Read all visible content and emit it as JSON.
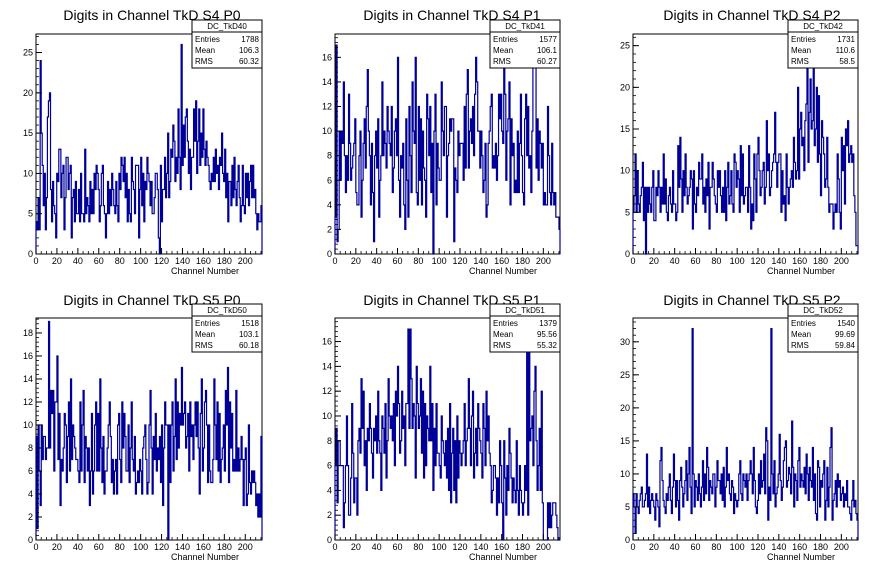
{
  "panels_meta": {
    "xlabel": "Channel Number",
    "line_color": "#000099",
    "frame_color": "#000000"
  },
  "chart_data": [
    {
      "type": "bar",
      "title": "Digits in Channel TkD S4 P0",
      "xlabel": "Channel Number",
      "xlim": [
        0,
        216
      ],
      "ylim": [
        0,
        27.3
      ],
      "xticks": [
        0,
        20,
        40,
        60,
        80,
        100,
        120,
        140,
        160,
        180,
        200
      ],
      "yticks": [
        0,
        5,
        10,
        15,
        20,
        25
      ],
      "stats": {
        "name": "DC_TkD40",
        "entries": "1788",
        "mean": "106.3",
        "rms": "60.32"
      },
      "values": [
        4,
        3,
        7,
        3,
        24,
        15,
        11,
        6,
        10,
        3,
        7,
        17,
        19,
        20,
        8,
        4,
        9,
        6,
        5,
        2,
        10,
        9,
        13,
        13,
        7,
        10,
        11,
        3,
        7,
        12,
        12,
        8,
        10,
        11,
        2,
        7,
        8,
        4,
        9,
        5,
        5,
        8,
        4,
        10,
        5,
        5,
        4,
        13,
        5,
        7,
        6,
        4,
        9,
        5,
        8,
        5,
        10,
        8,
        11,
        10,
        8,
        4,
        6,
        10,
        11,
        6,
        5,
        2,
        5,
        9,
        5,
        8,
        6,
        10,
        8,
        6,
        5,
        9,
        6,
        4,
        10,
        8,
        12,
        11,
        9,
        12,
        7,
        10,
        4,
        8,
        5,
        4,
        12,
        9,
        8,
        5,
        11,
        11,
        11,
        2,
        8,
        12,
        6,
        10,
        4,
        9,
        8,
        12,
        10,
        9,
        6,
        9,
        5,
        5,
        7,
        10,
        10,
        8,
        2,
        0,
        11,
        4,
        8,
        8,
        12,
        7,
        10,
        15,
        7,
        9,
        13,
        12,
        16,
        14,
        9,
        12,
        10,
        18,
        12,
        8,
        26,
        11,
        16,
        12,
        17,
        18,
        14,
        10,
        13,
        8,
        12,
        12,
        18,
        14,
        19,
        10,
        14,
        18,
        11,
        15,
        12,
        18,
        13,
        11,
        14,
        12,
        11,
        9,
        8,
        10,
        9,
        12,
        9,
        13,
        10,
        11,
        8,
        12,
        11,
        15,
        10,
        9,
        13,
        7,
        10,
        4,
        9,
        9,
        6,
        11,
        7,
        12,
        8,
        6,
        9,
        11,
        7,
        4,
        6,
        11,
        6,
        5,
        10,
        7,
        10,
        6,
        9,
        11,
        7,
        11,
        7,
        8,
        5,
        3,
        5,
        4,
        4,
        6
      ]
    },
    {
      "type": "bar",
      "title": "Digits in Channel TkD S4 P1",
      "xlabel": "Channel Number",
      "xlim": [
        0,
        216
      ],
      "ylim": [
        0,
        17.9
      ],
      "xticks": [
        0,
        20,
        40,
        60,
        80,
        100,
        120,
        140,
        160,
        180,
        200
      ],
      "yticks": [
        0,
        2,
        4,
        6,
        8,
        10,
        12,
        14,
        16
      ],
      "stats": {
        "name": "DC_TkD41",
        "entries": "1577",
        "mean": "106.1",
        "rms": "60.27"
      },
      "values": [
        3,
        17,
        1,
        2,
        10,
        6,
        10,
        9,
        14,
        8,
        5,
        8,
        6,
        13,
        9,
        6,
        7,
        8,
        9,
        11,
        5,
        4,
        4,
        8,
        10,
        3,
        6,
        9,
        11,
        7,
        12,
        15,
        10,
        8,
        4,
        9,
        5,
        1,
        8,
        10,
        7,
        11,
        3,
        6,
        8,
        14,
        8,
        10,
        9,
        7,
        12,
        10,
        9,
        8,
        12,
        5,
        7,
        10,
        11,
        8,
        16,
        6,
        3,
        8,
        7,
        9,
        4,
        2,
        11,
        6,
        3,
        12,
        8,
        5,
        14,
        10,
        9,
        16,
        5,
        4,
        12,
        6,
        11,
        4,
        10,
        7,
        6,
        3,
        13,
        11,
        8,
        12,
        5,
        9,
        0,
        10,
        13,
        4,
        9,
        7,
        6,
        6,
        14,
        10,
        8,
        12,
        12,
        3,
        8,
        9,
        11,
        10,
        11,
        11,
        1,
        7,
        6,
        5,
        10,
        8,
        9,
        9,
        9,
        6,
        12,
        7,
        13,
        15,
        7,
        10,
        11,
        9,
        12,
        8,
        13,
        16,
        14,
        10,
        10,
        7,
        10,
        8,
        5,
        6,
        9,
        3,
        4,
        9,
        10,
        12,
        13,
        7,
        8,
        7,
        9,
        6,
        8,
        13,
        11,
        13,
        10,
        9,
        16,
        13,
        6,
        10,
        11,
        14,
        4,
        11,
        8,
        9,
        5,
        6,
        5,
        10,
        5,
        9,
        13,
        8,
        5,
        4,
        11,
        13,
        8,
        12,
        7,
        8,
        5,
        10,
        16,
        17,
        16,
        7,
        11,
        6,
        10,
        9,
        7,
        9,
        4,
        5,
        4,
        4,
        12,
        8,
        5,
        4,
        9,
        5,
        4,
        5,
        3,
        3,
        3,
        2
      ]
    },
    {
      "type": "bar",
      "title": "Digits in Channel TkD S4 P2",
      "xlabel": "Channel Number",
      "xlim": [
        0,
        216
      ],
      "ylim": [
        0,
        26.4
      ],
      "xticks": [
        0,
        20,
        40,
        60,
        80,
        100,
        120,
        140,
        160,
        180,
        200
      ],
      "yticks": [
        0,
        5,
        10,
        15,
        20,
        25
      ],
      "stats": {
        "name": "DC_TkD42",
        "entries": "1731",
        "mean": "110.6",
        "rms": "58.5"
      },
      "values": [
        5,
        7,
        12,
        5,
        10,
        6,
        5,
        7,
        8,
        11,
        4,
        8,
        0,
        8,
        5,
        8,
        6,
        5,
        8,
        10,
        4,
        4,
        8,
        7,
        10,
        8,
        5,
        8,
        6,
        12,
        6,
        9,
        5,
        4,
        7,
        8,
        6,
        5,
        10,
        6,
        6,
        4,
        5,
        13,
        8,
        14,
        9,
        5,
        10,
        7,
        12,
        8,
        6,
        7,
        8,
        10,
        9,
        3,
        10,
        6,
        5,
        8,
        7,
        11,
        9,
        9,
        12,
        6,
        8,
        5,
        9,
        7,
        11,
        3,
        8,
        8,
        11,
        9,
        7,
        6,
        5,
        10,
        8,
        10,
        7,
        5,
        8,
        5,
        10,
        4,
        8,
        11,
        6,
        7,
        10,
        6,
        5,
        12,
        11,
        8,
        10,
        9,
        5,
        13,
        7,
        12,
        6,
        7,
        8,
        8,
        5,
        13,
        8,
        3,
        6,
        4,
        12,
        9,
        5,
        12,
        14,
        10,
        7,
        8,
        10,
        11,
        6,
        8,
        16,
        10,
        12,
        7,
        8,
        10,
        11,
        12,
        17,
        11,
        8,
        11,
        12,
        12,
        5,
        10,
        6,
        7,
        4,
        12,
        8,
        6,
        8,
        9,
        10,
        8,
        14,
        11,
        9,
        10,
        20,
        9,
        15,
        17,
        13,
        14,
        10,
        16,
        18,
        25,
        11,
        17,
        21,
        15,
        16,
        23,
        13,
        15,
        20,
        11,
        19,
        12,
        7,
        16,
        14,
        12,
        8,
        9,
        14,
        8,
        5,
        6,
        6,
        6,
        3,
        5,
        6,
        5,
        12,
        9,
        5,
        3,
        14,
        10,
        13,
        6,
        15,
        13,
        16,
        11,
        12,
        13,
        11,
        12,
        7,
        5,
        1,
        1
      ]
    },
    {
      "type": "bar",
      "title": "Digits in Channel TkD S5 P0",
      "xlabel": "Channel Number",
      "xlim": [
        0,
        216
      ],
      "ylim": [
        0,
        19.3
      ],
      "xticks": [
        0,
        20,
        40,
        60,
        80,
        100,
        120,
        140,
        160,
        180,
        200
      ],
      "yticks": [
        0,
        2,
        4,
        6,
        8,
        10,
        12,
        14,
        16,
        18
      ],
      "stats": {
        "name": "DC_TkD50",
        "entries": "1518",
        "mean": "103.1",
        "rms": "60.18"
      },
      "values": [
        9,
        1,
        10,
        6,
        3,
        10,
        7,
        9,
        9,
        7,
        8,
        8,
        19,
        8,
        13,
        11,
        13,
        6,
        12,
        12,
        16,
        7,
        11,
        3,
        7,
        6,
        8,
        11,
        10,
        5,
        9,
        12,
        6,
        14,
        7,
        10,
        9,
        8,
        7,
        7,
        6,
        5,
        12,
        6,
        10,
        13,
        5,
        9,
        8,
        6,
        8,
        3,
        6,
        11,
        4,
        6,
        10,
        12,
        6,
        11,
        6,
        14,
        8,
        5,
        9,
        4,
        6,
        6,
        8,
        10,
        12,
        9,
        5,
        7,
        4,
        6,
        7,
        4,
        10,
        11,
        7,
        5,
        12,
        8,
        11,
        9,
        6,
        6,
        10,
        5,
        8,
        12,
        7,
        6,
        9,
        4,
        5,
        6,
        5,
        7,
        6,
        4,
        8,
        9,
        10,
        7,
        4,
        5,
        10,
        13,
        8,
        4,
        9,
        7,
        11,
        6,
        8,
        7,
        9,
        5,
        10,
        3,
        8,
        12,
        10,
        10,
        0,
        10,
        5,
        10,
        12,
        6,
        9,
        14,
        7,
        12,
        8,
        11,
        10,
        15,
        10,
        11,
        12,
        8,
        9,
        11,
        6,
        12,
        9,
        10,
        7,
        10,
        12,
        9,
        12,
        8,
        4,
        11,
        14,
        6,
        8,
        12,
        13,
        10,
        5,
        10,
        6,
        5,
        5,
        7,
        14,
        10,
        7,
        12,
        6,
        11,
        5,
        7,
        8,
        10,
        6,
        13,
        10,
        15,
        5,
        12,
        8,
        11,
        6,
        7,
        6,
        13,
        6,
        8,
        6,
        7,
        9,
        7,
        3,
        7,
        8,
        3,
        4,
        10,
        5,
        4,
        6,
        5,
        6,
        5,
        3,
        4,
        2,
        4,
        2,
        9
      ]
    },
    {
      "type": "bar",
      "title": "Digits in Channel TkD S5 P1",
      "xlabel": "Channel Number",
      "xlim": [
        0,
        216
      ],
      "ylim": [
        0,
        17.9
      ],
      "xticks": [
        0,
        20,
        40,
        60,
        80,
        100,
        120,
        140,
        160,
        180,
        200
      ],
      "yticks": [
        0,
        2,
        4,
        6,
        8,
        10,
        12,
        14,
        16
      ],
      "stats": {
        "name": "DC_TkD51",
        "entries": "1379",
        "mean": "95.56",
        "rms": "55.32"
      },
      "values": [
        6,
        9,
        3,
        8,
        8,
        6,
        6,
        6,
        1,
        3,
        6,
        10,
        6,
        2,
        2,
        5,
        11,
        7,
        3,
        5,
        5,
        2,
        8,
        9,
        7,
        13,
        9,
        12,
        6,
        8,
        4,
        9,
        8,
        11,
        9,
        7,
        5,
        9,
        8,
        10,
        7,
        12,
        8,
        7,
        4,
        10,
        9,
        7,
        11,
        5,
        8,
        13,
        10,
        9,
        10,
        8,
        11,
        6,
        12,
        10,
        14,
        11,
        7,
        8,
        12,
        9,
        10,
        6,
        11,
        11,
        17,
        9,
        17,
        13,
        9,
        11,
        10,
        5,
        14,
        11,
        9,
        10,
        13,
        7,
        12,
        5,
        11,
        6,
        10,
        9,
        8,
        14,
        8,
        11,
        4,
        9,
        6,
        11,
        7,
        7,
        6,
        5,
        10,
        8,
        7,
        6,
        8,
        5,
        9,
        4,
        11,
        3,
        7,
        9,
        4,
        8,
        3,
        10,
        5,
        8,
        7,
        6,
        7,
        8,
        11,
        6,
        8,
        9,
        13,
        9,
        6,
        10,
        12,
        5,
        7,
        9,
        6,
        11,
        9,
        8,
        7,
        5,
        11,
        9,
        6,
        12,
        8,
        10,
        7,
        6,
        3,
        4,
        6,
        6,
        5,
        2,
        5,
        3,
        8,
        6,
        3,
        0,
        8,
        5,
        2,
        6,
        4,
        9,
        7,
        5,
        3,
        5,
        4,
        3,
        8,
        4,
        2,
        6,
        4,
        3,
        2,
        3,
        6,
        4,
        16,
        2,
        17,
        8,
        9,
        10,
        6,
        12,
        14,
        8,
        4,
        6,
        9,
        4,
        12,
        3,
        0,
        0,
        0,
        0,
        3,
        1,
        3,
        1,
        2,
        3,
        3,
        3,
        2,
        1,
        0,
        0
      ]
    },
    {
      "type": "bar",
      "title": "Digits in Channel TkD S5 P2",
      "xlabel": "Channel Number",
      "xlim": [
        0,
        216
      ],
      "ylim": [
        0,
        33.6
      ],
      "xticks": [
        0,
        20,
        40,
        60,
        80,
        100,
        120,
        140,
        160,
        180,
        200
      ],
      "yticks": [
        0,
        5,
        10,
        15,
        20,
        25,
        30
      ],
      "stats": {
        "name": "DC_TkD52",
        "entries": "1540",
        "mean": "99.69",
        "rms": "59.84"
      },
      "values": [
        7,
        5,
        1,
        7,
        5,
        4,
        6,
        7,
        8,
        5,
        5,
        6,
        7,
        13,
        5,
        8,
        4,
        6,
        7,
        6,
        5,
        3,
        7,
        6,
        5,
        2,
        12,
        14,
        9,
        6,
        5,
        4,
        7,
        6,
        8,
        10,
        6,
        4,
        8,
        13,
        9,
        5,
        9,
        6,
        3,
        9,
        11,
        8,
        5,
        7,
        9,
        12,
        6,
        10,
        14,
        8,
        4,
        32,
        10,
        5,
        9,
        8,
        6,
        10,
        7,
        5,
        8,
        12,
        6,
        10,
        7,
        14,
        11,
        6,
        9,
        8,
        7,
        10,
        10,
        5,
        8,
        12,
        9,
        9,
        7,
        10,
        6,
        11,
        5,
        8,
        14,
        9,
        10,
        7,
        6,
        9,
        8,
        4,
        7,
        6,
        5,
        6,
        10,
        12,
        7,
        6,
        10,
        9,
        8,
        10,
        6,
        9,
        10,
        12,
        10,
        7,
        14,
        9,
        5,
        4,
        6,
        10,
        7,
        12,
        8,
        9,
        13,
        7,
        17,
        15,
        3,
        8,
        6,
        32,
        10,
        7,
        12,
        5,
        7,
        8,
        10,
        16,
        9,
        6,
        8,
        12,
        14,
        15,
        8,
        9,
        11,
        10,
        7,
        18,
        11,
        5,
        10,
        9,
        6,
        12,
        14,
        8,
        10,
        9,
        8,
        11,
        7,
        13,
        10,
        6,
        11,
        9,
        8,
        14,
        6,
        10,
        4,
        3,
        12,
        11,
        5,
        9,
        8,
        10,
        12,
        3,
        6,
        11,
        5,
        8,
        14,
        17,
        3,
        6,
        7,
        9,
        5,
        10,
        8,
        9,
        6,
        7,
        8,
        5,
        7,
        6,
        9,
        5,
        5,
        4,
        3,
        6,
        9,
        5,
        6,
        4,
        3
      ]
    }
  ]
}
